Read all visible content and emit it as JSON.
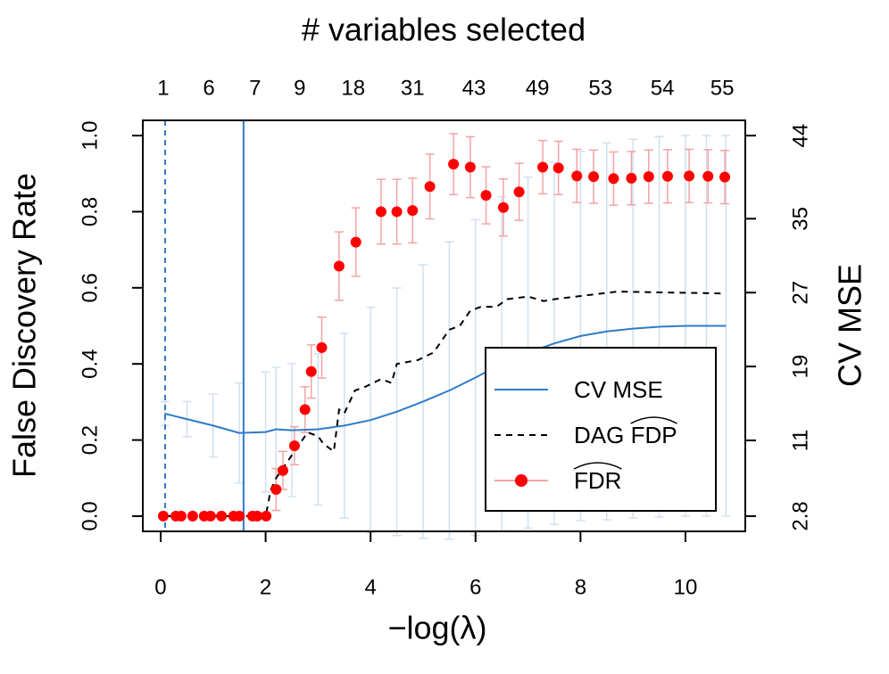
{
  "chart_data": {
    "type": "line",
    "x_label": "−log(λ)",
    "x2_label": "# variables selected",
    "y_label": "False Discovery Rate",
    "y2_label": "CV MSE",
    "xlim": [
      -0.34,
      11.14
    ],
    "ylim": [
      -0.04,
      1.04
    ],
    "y2lim": [
      1.15,
      45.65
    ],
    "xticks": [
      0,
      2,
      4,
      6,
      8,
      10
    ],
    "yticks": [
      {
        "value": 0,
        "label": "0.0"
      },
      0.2,
      0.4,
      0.6,
      0.8,
      {
        "value": 1,
        "label": "1.0"
      }
    ],
    "y2ticks": [
      2.8,
      11,
      19,
      27,
      35,
      44
    ],
    "x2ticks": [
      {
        "value": 0.05,
        "label": "1"
      },
      {
        "value": 0.92,
        "label": "6"
      },
      {
        "value": 1.8,
        "label": "7"
      },
      {
        "value": 2.65,
        "label": "9"
      },
      {
        "value": 3.67,
        "label": "18"
      },
      {
        "value": 4.8,
        "label": "31"
      },
      {
        "value": 5.97,
        "label": "43"
      },
      {
        "value": 7.18,
        "label": "49"
      },
      {
        "value": 8.38,
        "label": "53"
      },
      {
        "value": 9.56,
        "label": "54"
      },
      {
        "value": 10.7,
        "label": "55"
      }
    ],
    "vlines": [
      {
        "x": 0.085,
        "style": "dashed",
        "color": "#2f7bc8"
      },
      {
        "x": 1.58,
        "style": "solid",
        "color": "#2f7bc8"
      }
    ],
    "legend": "right",
    "series": [
      {
        "name": "CV MSE",
        "color": "#2f7bc8",
        "style": "solid",
        "axis": "y2",
        "error_color": "#cfe1f2",
        "x": [
          0.08,
          0.5,
          1.0,
          1.5,
          2.0,
          2.2,
          2.5,
          3.0,
          3.5,
          4.0,
          4.5,
          5.0,
          5.5,
          6.0,
          6.5,
          7.0,
          7.5,
          8.0,
          8.5,
          9.0,
          9.5,
          10.0,
          10.4,
          10.77
        ],
        "values": [
          13.9,
          13.3,
          12.6,
          11.8,
          11.9,
          12.2,
          12.1,
          12.2,
          12.6,
          13.2,
          14.1,
          15.2,
          16.4,
          17.8,
          19.3,
          20.5,
          21.5,
          22.3,
          22.8,
          23.1,
          23.3,
          23.4,
          23.4,
          23.4
        ],
        "errors": [
          1.3,
          1.9,
          3.4,
          5.4,
          6.5,
          6.7,
          7.2,
          8.2,
          10.0,
          12.2,
          13.4,
          14.8,
          16.1,
          17.1,
          18.1,
          19.0,
          19.6,
          20.0,
          20.4,
          20.5,
          20.6,
          20.6,
          20.6,
          20.6
        ]
      },
      {
        "name": "DAG FDP",
        "color": "#000000",
        "style": "dashed",
        "x": [
          0.08,
          2.0,
          2.1,
          2.2,
          2.5,
          2.8,
          3.0,
          3.1,
          3.3,
          3.4,
          3.5,
          3.7,
          3.9,
          4.2,
          4.4,
          4.5,
          4.9,
          5.2,
          5.5,
          5.7,
          5.9,
          6.1,
          6.4,
          6.6,
          7.0,
          7.3,
          7.5,
          7.8,
          8.1,
          8.7,
          10.77
        ],
        "values": [
          0,
          0,
          0.07,
          0.1,
          0.16,
          0.22,
          0.21,
          0.19,
          0.17,
          0.28,
          0.27,
          0.33,
          0.34,
          0.36,
          0.35,
          0.4,
          0.41,
          0.43,
          0.49,
          0.5,
          0.54,
          0.55,
          0.55,
          0.57,
          0.577,
          0.565,
          0.57,
          0.575,
          0.58,
          0.59,
          0.585
        ]
      },
      {
        "name": "FDR",
        "color": "#ff0000",
        "marker": "circle",
        "error_color": "#f4a3a3",
        "x": [
          0.05,
          0.29,
          0.39,
          0.61,
          0.83,
          0.95,
          1.16,
          1.39,
          1.5,
          1.75,
          1.84,
          2.01,
          2.2,
          2.33,
          2.55,
          2.75,
          2.87,
          3.07,
          3.4,
          3.72,
          4.2,
          4.5,
          4.8,
          5.13,
          5.58,
          5.9,
          6.2,
          6.53,
          6.83,
          7.28,
          7.58,
          7.93,
          8.25,
          8.63,
          8.97,
          9.3,
          9.66,
          10.07,
          10.43,
          10.75
        ],
        "values": [
          0,
          0,
          0,
          0,
          0,
          0,
          0,
          0,
          0,
          0,
          0,
          0,
          0.07,
          0.12,
          0.185,
          0.28,
          0.38,
          0.443,
          0.657,
          0.72,
          0.8,
          0.8,
          0.803,
          0.866,
          0.925,
          0.917,
          0.843,
          0.811,
          0.852,
          0.917,
          0.915,
          0.894,
          0.892,
          0.887,
          0.888,
          0.892,
          0.893,
          0.894,
          0.893,
          0.891
        ],
        "errors": [
          0,
          0,
          0,
          0,
          0,
          0,
          0,
          0,
          0,
          0,
          0,
          0,
          0.055,
          0.05,
          0.05,
          0.06,
          0.07,
          0.08,
          0.09,
          0.09,
          0.085,
          0.085,
          0.085,
          0.085,
          0.08,
          0.08,
          0.075,
          0.075,
          0.075,
          0.07,
          0.07,
          0.07,
          0.07,
          0.07,
          0.07,
          0.07,
          0.07,
          0.07,
          0.07,
          0.07
        ]
      }
    ]
  }
}
